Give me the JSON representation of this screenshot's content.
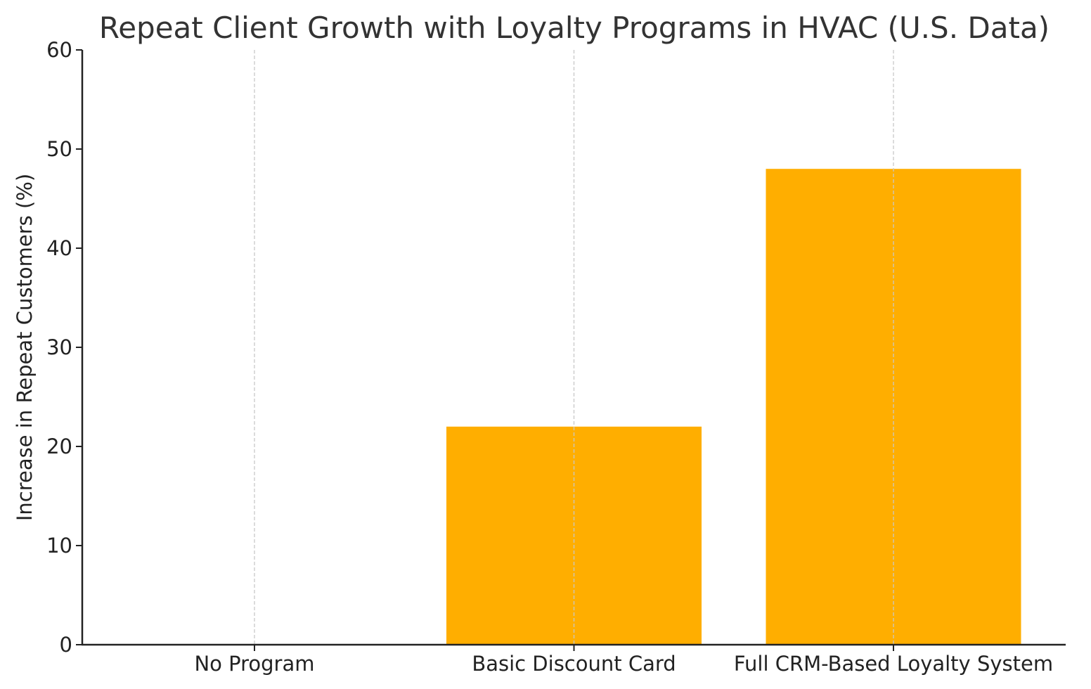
{
  "chart_data": {
    "type": "bar",
    "title": "Repeat Client Growth with Loyalty Programs in HVAC (U.S. Data)",
    "xlabel": "",
    "ylabel": "Increase in Repeat Customers (%)",
    "categories": [
      "No Program",
      "Basic Discount Card",
      "Full CRM-Based Loyalty System"
    ],
    "values": [
      0,
      22,
      48
    ],
    "ylim": [
      0,
      60
    ],
    "yticks": [
      0,
      10,
      20,
      30,
      40,
      50,
      60
    ],
    "grid": "vertical dashed at category centers",
    "bar_color": "#FFAE00",
    "grid_color": "#c8c8c8",
    "axis_color": "#222222",
    "title_color": "#333333",
    "legend": "none"
  }
}
